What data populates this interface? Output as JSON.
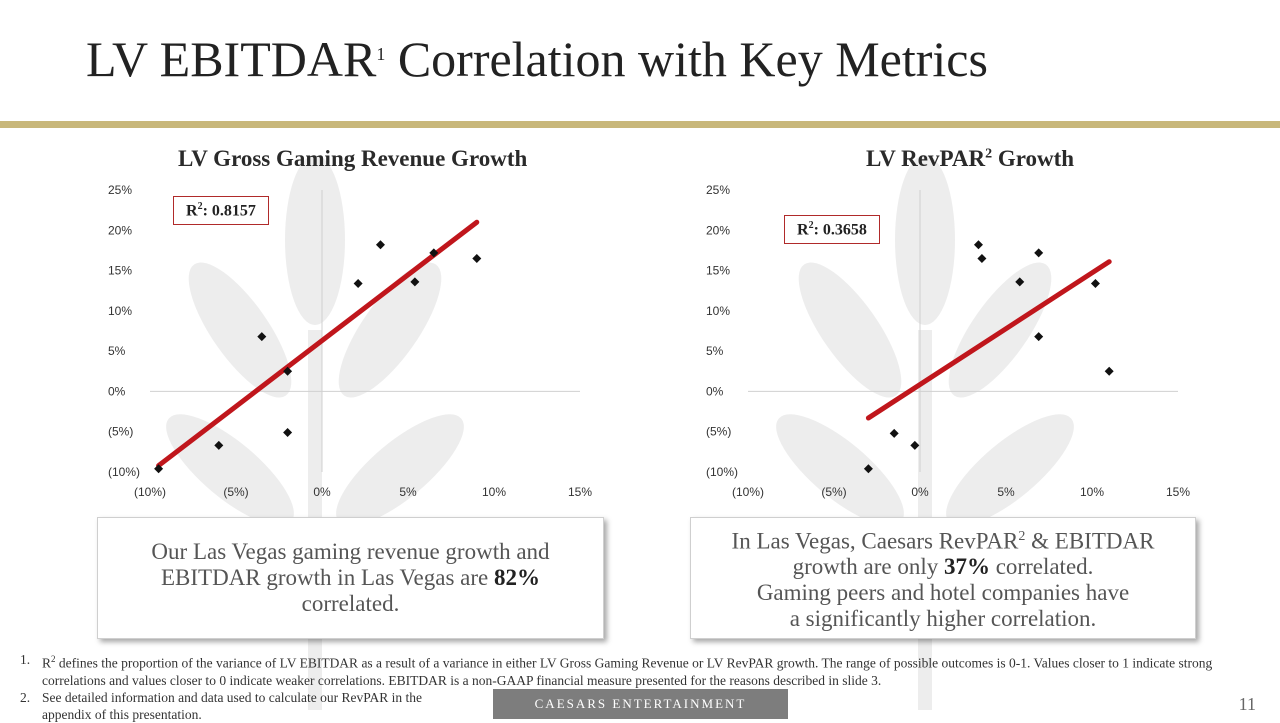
{
  "title": {
    "main": "LV EBITDAR",
    "sup": "1",
    "rest": " Correlation with Key Metrics"
  },
  "colors": {
    "accent_rule": "#c8b77a",
    "trendline": "#c0161c",
    "footer": "#7d7d7d"
  },
  "chart_data": [
    {
      "type": "scatter",
      "title": "LV Gross Gaming Revenue Growth",
      "xlim": [
        -10,
        15
      ],
      "ylim": [
        -10,
        25
      ],
      "x_ticks": [
        -10,
        -5,
        0,
        5,
        10,
        15
      ],
      "y_ticks": [
        -10,
        -5,
        0,
        5,
        10,
        15,
        20,
        25
      ],
      "x_tick_labels": [
        "(10%)",
        "(5%)",
        "0%",
        "5%",
        "10%",
        "15%"
      ],
      "y_tick_labels": [
        "(10%)",
        "(5%)",
        "0%",
        "5%",
        "10%",
        "15%",
        "20%",
        "25%"
      ],
      "points": [
        {
          "x": -9.5,
          "y": -9.6
        },
        {
          "x": -6.0,
          "y": -6.7
        },
        {
          "x": -3.5,
          "y": 6.8
        },
        {
          "x": -2.0,
          "y": 2.5
        },
        {
          "x": -2.0,
          "y": -5.1
        },
        {
          "x": 2.1,
          "y": 13.4
        },
        {
          "x": 3.4,
          "y": 18.2
        },
        {
          "x": 5.4,
          "y": 13.6
        },
        {
          "x": 6.5,
          "y": 17.2
        },
        {
          "x": 9.0,
          "y": 16.5
        }
      ],
      "trendline": {
        "x1": -9.5,
        "y1": -9.2,
        "x2": 9.0,
        "y2": 21.0
      },
      "r2_label": "R",
      "r2_sup": "2",
      "r2_value": ": 0.8157"
    },
    {
      "type": "scatter",
      "title": "LV RevPAR",
      "title_sup": "2",
      "title_rest": " Growth",
      "xlim": [
        -10,
        15
      ],
      "ylim": [
        -10,
        25
      ],
      "x_ticks": [
        -10,
        -5,
        0,
        5,
        10,
        15
      ],
      "y_ticks": [
        -10,
        -5,
        0,
        5,
        10,
        15,
        20,
        25
      ],
      "x_tick_labels": [
        "(10%)",
        "(5%)",
        "0%",
        "5%",
        "10%",
        "15%"
      ],
      "y_tick_labels": [
        "(10%)",
        "(5%)",
        "0%",
        "5%",
        "10%",
        "15%",
        "20%",
        "25%"
      ],
      "points": [
        {
          "x": -3.0,
          "y": -9.6
        },
        {
          "x": -1.5,
          "y": -5.2
        },
        {
          "x": -0.3,
          "y": -6.7
        },
        {
          "x": 3.4,
          "y": 18.2
        },
        {
          "x": 3.6,
          "y": 16.5
        },
        {
          "x": 5.8,
          "y": 13.6
        },
        {
          "x": 6.9,
          "y": 17.2
        },
        {
          "x": 6.9,
          "y": 6.8
        },
        {
          "x": 10.2,
          "y": 13.4
        },
        {
          "x": 11.0,
          "y": 2.5
        }
      ],
      "trendline": {
        "x1": -3.0,
        "y1": -3.3,
        "x2": 11.0,
        "y2": 16.1
      },
      "r2_label": "R",
      "r2_sup": "2",
      "r2_value": ": 0.3658"
    }
  ],
  "callouts": {
    "left": {
      "line1": "Our Las Vegas gaming revenue growth and",
      "line2a": "EBITDAR growth in Las Vegas are ",
      "line2b": "82%",
      "line3": "correlated."
    },
    "right": {
      "line1a": "In Las Vegas, Caesars RevPAR",
      "line1sup": "2",
      "line1b": " & EBITDAR",
      "line2a": "growth are only ",
      "line2b": "37%",
      "line2c": " correlated.",
      "line3": "Gaming peers and hotel companies have",
      "line4": "a significantly higher correlation."
    }
  },
  "footnotes": [
    {
      "num": "1.",
      "pre": "R",
      "sup": "2",
      "text": " defines the proportion of the variance of LV EBITDAR as a result of a variance in either LV Gross Gaming Revenue or LV RevPAR growth. The range of possible outcomes is 0-1. Values closer to 1 indicate strong correlations and values closer to 0 indicate weaker correlations. EBITDAR is a non-GAAP financial measure presented for the reasons described in slide 3."
    },
    {
      "num": "2.",
      "text": "See detailed information and data used to calculate our RevPAR in the appendix of this presentation."
    }
  ],
  "footer": {
    "brand": "CAESARS ENTERTAINMENT",
    "page": "11"
  }
}
